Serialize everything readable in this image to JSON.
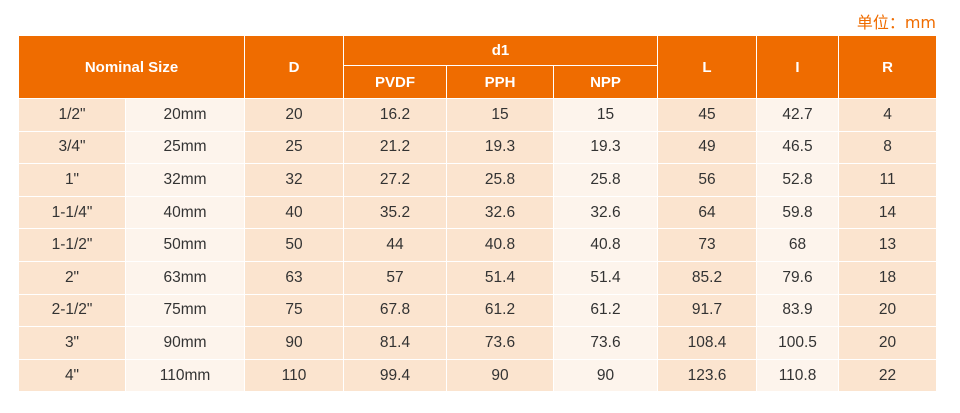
{
  "unit": "单位：mm",
  "header": {
    "nominal_size": "Nominal Size",
    "d": "D",
    "d1": "d1",
    "sub": [
      "PVDF",
      "PPH",
      "NPP"
    ],
    "l": "L",
    "i": "I",
    "r": "R"
  },
  "table": {
    "rows": [
      [
        "1/2\"",
        "20mm",
        "20",
        "16.2",
        "15",
        "15",
        "45",
        "42.7",
        "4"
      ],
      [
        "3/4\"",
        "25mm",
        "25",
        "21.2",
        "19.3",
        "19.3",
        "49",
        "46.5",
        "8"
      ],
      [
        "1\"",
        "32mm",
        "32",
        "27.2",
        "25.8",
        "25.8",
        "56",
        "52.8",
        "11"
      ],
      [
        "1-1/4\"",
        "40mm",
        "40",
        "35.2",
        "32.6",
        "32.6",
        "64",
        "59.8",
        "14"
      ],
      [
        "1-1/2\"",
        "50mm",
        "50",
        "44",
        "40.8",
        "40.8",
        "73",
        "68",
        "13"
      ],
      [
        "2\"",
        "63mm",
        "63",
        "57",
        "51.4",
        "51.4",
        "85.2",
        "79.6",
        "18"
      ],
      [
        "2-1/2\"",
        "75mm",
        "75",
        "67.8",
        "61.2",
        "61.2",
        "91.7",
        "83.9",
        "20"
      ],
      [
        "3\"",
        "90mm",
        "90",
        "81.4",
        "73.6",
        "73.6",
        "108.4",
        "100.5",
        "20"
      ],
      [
        "4\"",
        "110mm",
        "110",
        "99.4",
        "90",
        "90",
        "123.6",
        "110.8",
        "22"
      ]
    ]
  }
}
